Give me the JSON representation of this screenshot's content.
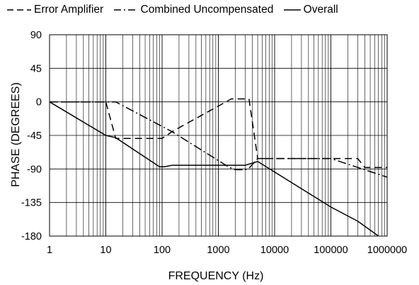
{
  "chart_data": {
    "type": "line",
    "title": "",
    "xlabel": "FREQUENCY (Hz)",
    "ylabel": "PHASE (DEGREES)",
    "x_scale": "log",
    "xlim": [
      1,
      1000000
    ],
    "ylim": [
      -180,
      90
    ],
    "x_ticks": [
      "1",
      "10",
      "100",
      "1000",
      "10000",
      "100000",
      "1000000"
    ],
    "y_ticks": [
      "90",
      "45",
      "0",
      "-45",
      "-90",
      "-135",
      "-180"
    ],
    "grid": true,
    "legend_position": "top",
    "series": [
      {
        "name": "Error Amplifier",
        "style": "dash",
        "x": [
          1,
          10,
          15,
          20,
          100,
          120,
          150,
          1700,
          3500,
          5000,
          10000,
          100000,
          300000,
          400000,
          1000000
        ],
        "y": [
          0,
          0,
          -49,
          -49,
          -49,
          -45,
          -40,
          4,
          4,
          -76,
          -76,
          -76,
          -76,
          -88,
          -88
        ]
      },
      {
        "name": "Combined Uncompensated",
        "style": "dashdot",
        "x": [
          1,
          15,
          150,
          1500,
          2000,
          3000,
          3500,
          5000,
          10000,
          100000,
          1000000
        ],
        "y": [
          0,
          0,
          -40,
          -87,
          -91,
          -91,
          -89,
          -76,
          -76,
          -76,
          -101
        ]
      },
      {
        "name": "Overall",
        "style": "solid",
        "x": [
          1,
          10,
          15,
          90,
          110,
          150,
          3000,
          5000,
          100000,
          300000,
          800000
        ],
        "y": [
          0,
          -45,
          -48,
          -87,
          -87,
          -85,
          -85,
          -80,
          -141,
          -160,
          -183
        ]
      }
    ]
  }
}
